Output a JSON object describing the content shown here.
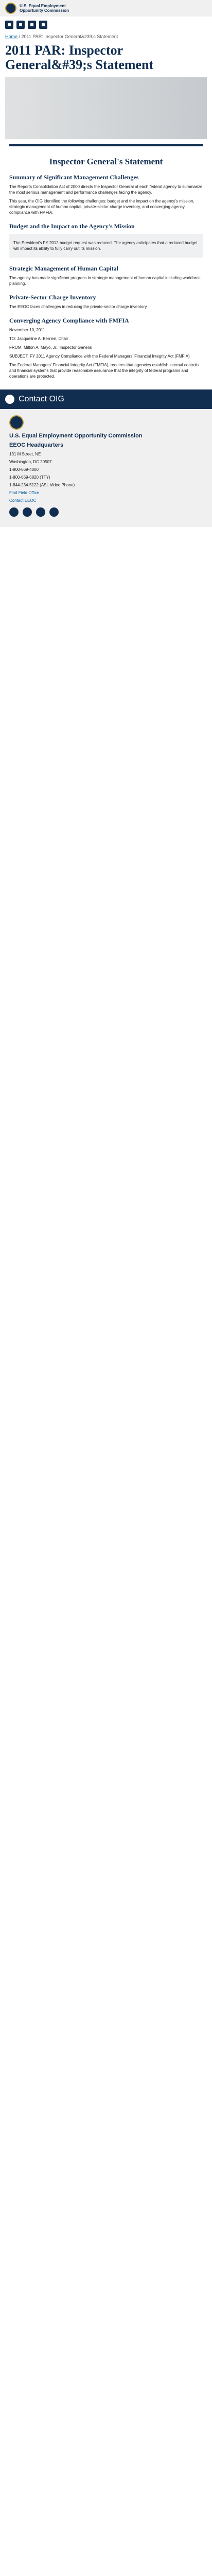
{
  "header": {
    "agency_line1": "U.S. Equal Employment",
    "agency_line2": "Opportunity Commission"
  },
  "breadcrumb": {
    "home": "Home",
    "current": "2011 PAR: Inspector General&#39;s Statement"
  },
  "page_title": "2011 PAR: Inspector General&#39;s Statement",
  "doc": {
    "title": "Inspector General's Statement",
    "subtitle": "Summary of Significant Management Challenges",
    "paras": [
      "The Reports Consolidation Act of 2000 directs the Inspector General of each federal agency to summarize the most serious management and performance challenges facing the agency.",
      "This year, the OIG identified the following challenges: budget and the impact on the agency's mission, strategic management of human capital, private-sector charge inventory, and converging agency compliance with FMFIA."
    ],
    "h_budget": "Budget and the Impact on the Agency's Mission",
    "budget_para": "The President's FY 2012 budget request was reduced. The agency anticipates that a reduced budget will impact its ability to fully carry out its mission.",
    "h_hr": "Strategic Management of Human Capital",
    "hr_para": "The agency has made significant progress in strategic management of human capital including workforce planning.",
    "h_inventory": "Private-Sector Charge Inventory",
    "inv_para": "The EEOC faces challenges in reducing the private-sector charge inventory.",
    "h_fmfia": "Converging Agency Compliance with FMFIA",
    "memo_date": "November 10, 2011",
    "memo_lines": [
      "TO: Jacqueline A. Berrien, Chair",
      "FROM: Milton A. Mayo, Jr., Inspector General",
      "SUBJECT: FY 2011 Agency Compliance with the Federal Managers' Financial Integrity Act (FMFIA)"
    ],
    "memo_para": "The Federal Managers' Financial Integrity Act (FMFIA), requires that agencies establish internal controls and financial systems that provide reasonable assurance that the integrity of federal programs and operations are protected."
  },
  "feedback": {
    "text": "Contact OIG"
  },
  "footer": {
    "org": "U.S. Equal Employment Opportunity Commission",
    "hq_title": "EEOC Headquarters",
    "addr1": "131 M Street, NE",
    "addr2": "Washington, DC 20507",
    "phone": "1-800-669-4000",
    "tty": "1-800-669-6820 (TTY)",
    "asl": "1-844-234-5122 (ASL Video Phone)",
    "link1": "Find Field Office",
    "link2": "Contact EEOC"
  }
}
